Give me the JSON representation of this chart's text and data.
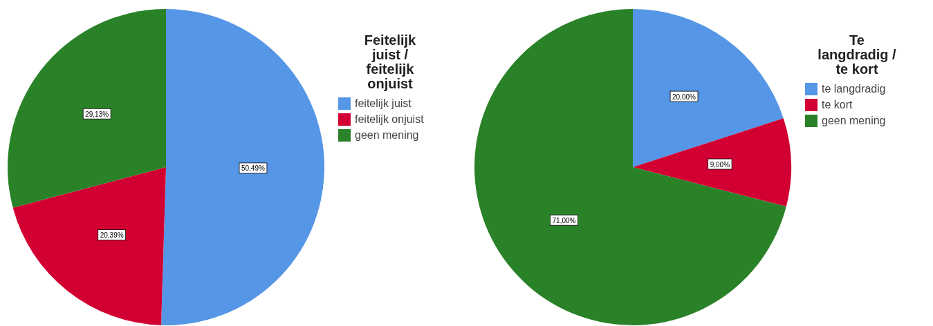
{
  "chart_data": [
    {
      "type": "pie",
      "legend_title": "Feitelijk juist / feitelijk onjuist",
      "categories": [
        "feitelijk juist",
        "feitelijk onjuist",
        "geen mening"
      ],
      "values": [
        50.49,
        20.39,
        29.13
      ],
      "colors": [
        "#5596e6",
        "#d20032",
        "#2a8228"
      ],
      "value_labels": [
        "50,49%",
        "20,39%",
        "29,13%"
      ],
      "legend": "right"
    },
    {
      "type": "pie",
      "legend_title": "Te langdradig / te kort",
      "categories": [
        "te langdradig",
        "te kort",
        "geen mening"
      ],
      "values": [
        20,
        9,
        71
      ],
      "colors": [
        "#5596e6",
        "#d20032",
        "#2a8228"
      ],
      "value_labels": [
        "20,00%",
        "9,00%",
        "71,00%"
      ],
      "legend": "right"
    }
  ]
}
